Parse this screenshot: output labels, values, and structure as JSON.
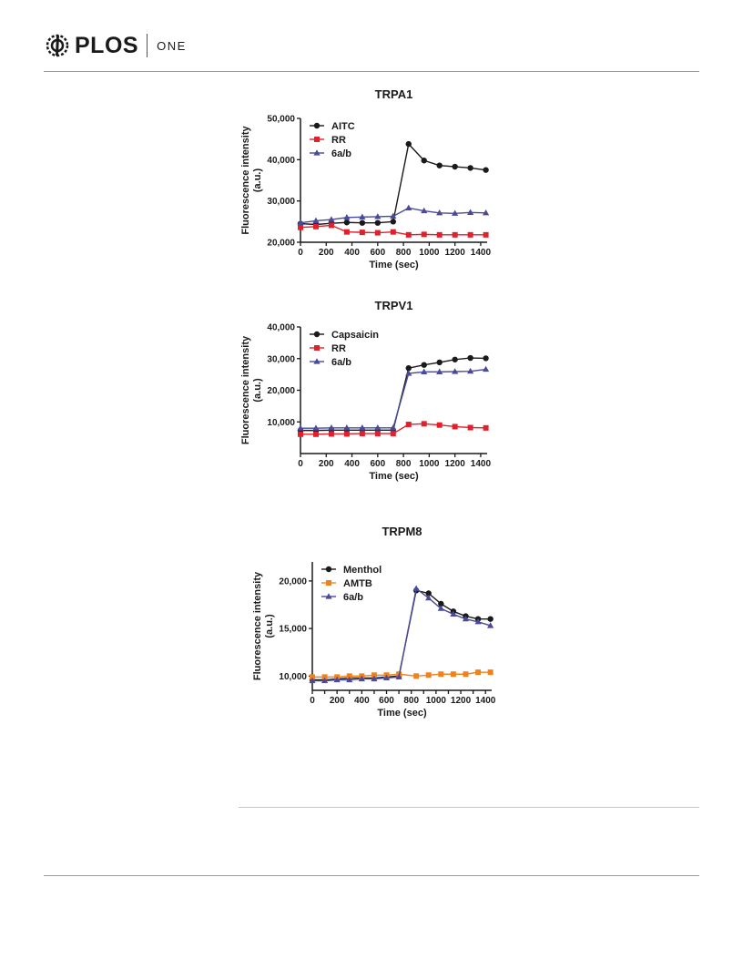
{
  "header": {
    "logo_word": "PLOS",
    "logo_sub": "ONE"
  },
  "chart_data": [
    {
      "type": "line",
      "title": "TRPA1",
      "xlabel": "Time (sec)",
      "ylabel": [
        "Fluorescence intensity",
        "(a.u.)"
      ],
      "xlim": [
        0,
        1450
      ],
      "ylim": [
        20000,
        50000
      ],
      "xticks": [
        0,
        200,
        400,
        600,
        800,
        1000,
        1200,
        1400
      ],
      "yticks": [
        20000,
        30000,
        40000,
        50000
      ],
      "ytick_labels": [
        "20,000",
        "30,000",
        "40,000",
        "50,000"
      ],
      "legend_position": "top-left",
      "x": [
        0,
        120,
        240,
        360,
        480,
        600,
        720,
        840,
        960,
        1080,
        1200,
        1320,
        1440
      ],
      "series": [
        {
          "name": "AITC",
          "color": "#1a1a1a",
          "marker": "circle",
          "values": [
            24500,
            24300,
            24600,
            24800,
            24700,
            24700,
            25000,
            43800,
            39800,
            38600,
            38300,
            38000,
            37500
          ]
        },
        {
          "name": "RR",
          "color": "#e0202a",
          "marker": "square",
          "values": [
            23600,
            23800,
            24100,
            22500,
            22400,
            22300,
            22500,
            21800,
            21900,
            21800,
            21800,
            21800,
            21800
          ]
        },
        {
          "name": "6a/b",
          "color": "#4a4a9a",
          "marker": "triangle",
          "values": [
            24700,
            25200,
            25500,
            26000,
            26100,
            26200,
            26300,
            28300,
            27600,
            27100,
            27000,
            27200,
            27100
          ]
        }
      ]
    },
    {
      "type": "line",
      "title": "TRPV1",
      "xlabel": "Time (sec)",
      "ylabel": [
        "Fluorescence intensity",
        "(a.u.)"
      ],
      "xlim": [
        0,
        1450
      ],
      "ylim": [
        0,
        40000
      ],
      "xticks": [
        0,
        200,
        400,
        600,
        800,
        1000,
        1200,
        1400
      ],
      "yticks": [
        10000,
        20000,
        30000,
        40000
      ],
      "ytick_labels": [
        "10,000",
        "20,000",
        "30,000",
        "40,000"
      ],
      "legend_position": "top-left",
      "x": [
        0,
        120,
        240,
        360,
        480,
        600,
        720,
        840,
        960,
        1080,
        1200,
        1320,
        1440
      ],
      "series": [
        {
          "name": "Capsaicin",
          "color": "#1a1a1a",
          "marker": "circle",
          "values": [
            7300,
            7300,
            7400,
            7400,
            7400,
            7400,
            7400,
            27000,
            28000,
            28800,
            29700,
            30200,
            30100
          ]
        },
        {
          "name": "RR",
          "color": "#e0202a",
          "marker": "square",
          "values": [
            6100,
            6100,
            6200,
            6200,
            6300,
            6300,
            6300,
            9200,
            9400,
            9000,
            8500,
            8200,
            8100
          ]
        },
        {
          "name": "6a/b",
          "color": "#4a4a9a",
          "marker": "triangle",
          "values": [
            8000,
            8000,
            8100,
            8100,
            8100,
            8100,
            8100,
            25300,
            25800,
            25800,
            25900,
            26000,
            26600
          ]
        }
      ]
    },
    {
      "type": "line",
      "title": "TRPM8",
      "xlabel": "Time (sec)",
      "ylabel": [
        "Fluorescence intensity",
        "(a.u.)"
      ],
      "xlim": [
        0,
        1450
      ],
      "ylim": [
        8500,
        22000
      ],
      "xticks": [
        0,
        100,
        200,
        300,
        400,
        500,
        600,
        700,
        800,
        900,
        1000,
        1100,
        1200,
        1300,
        1400
      ],
      "xtick_labels": [
        "0",
        "",
        "200",
        "",
        "400",
        "",
        "600",
        "",
        "800",
        "",
        "1000",
        "",
        "1200",
        "",
        "1400"
      ],
      "yticks": [
        10000,
        15000,
        20000
      ],
      "ytick_labels": [
        "10,000",
        "15,000",
        "20,000"
      ],
      "legend_position": "top-left",
      "x": [
        0,
        100,
        200,
        300,
        400,
        500,
        600,
        700,
        840,
        940,
        1040,
        1140,
        1240,
        1340,
        1440
      ],
      "series": [
        {
          "name": "Menthol",
          "color": "#1a1a1a",
          "marker": "circle",
          "values": [
            9600,
            9600,
            9700,
            9800,
            9800,
            9800,
            9900,
            10000,
            19000,
            18700,
            17600,
            16800,
            16300,
            16000,
            16000
          ]
        },
        {
          "name": "AMTB",
          "color": "#f0821e",
          "marker": "square",
          "values": [
            9900,
            9900,
            9900,
            10000,
            10000,
            10100,
            10100,
            10200,
            10000,
            10100,
            10200,
            10200,
            10200,
            10400,
            10400
          ]
        },
        {
          "name": "6a/b",
          "color": "#4a4a9a",
          "marker": "triangle",
          "values": [
            9500,
            9500,
            9600,
            9600,
            9700,
            9700,
            9800,
            9900,
            19200,
            18200,
            17100,
            16500,
            16000,
            15700,
            15300
          ]
        }
      ]
    }
  ]
}
